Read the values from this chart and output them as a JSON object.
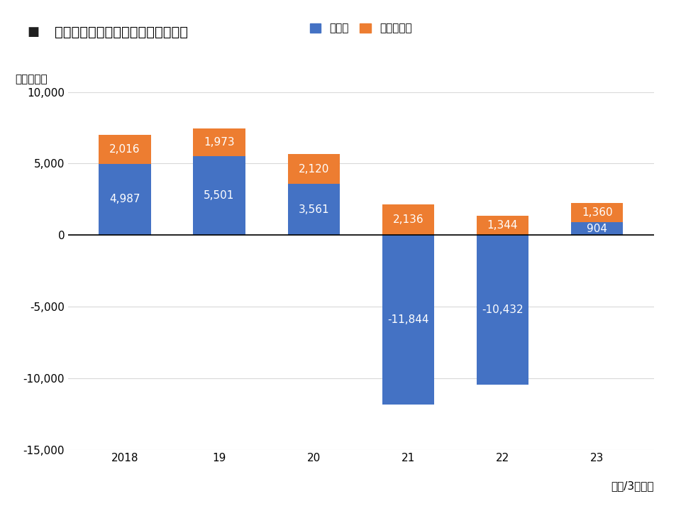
{
  "title": "帝国ホテルの事業別営業利益の推移",
  "ylabel": "（百万円）",
  "xlabel_note": "（年/3月期）",
  "categories": [
    "2018",
    "19",
    "20",
    "21",
    "22",
    "23"
  ],
  "hotel_values": [
    4987,
    5501,
    3561,
    -11844,
    -10432,
    904
  ],
  "realestate_values": [
    2016,
    1973,
    2120,
    2136,
    1344,
    1360
  ],
  "hotel_color": "#4472C4",
  "realestate_color": "#ED7D31",
  "hotel_label": "ホテル",
  "realestate_label": "不動産賃貸",
  "ylim": [
    -15000,
    10000
  ],
  "yticks": [
    -15000,
    -10000,
    -5000,
    0,
    5000,
    10000
  ],
  "background_color": "#FFFFFF",
  "grid_color": "#D9D9D9",
  "title_marker_color": "#1F1F1F",
  "title_fontsize": 14,
  "label_fontsize": 11,
  "tick_fontsize": 11,
  "bar_width": 0.55
}
